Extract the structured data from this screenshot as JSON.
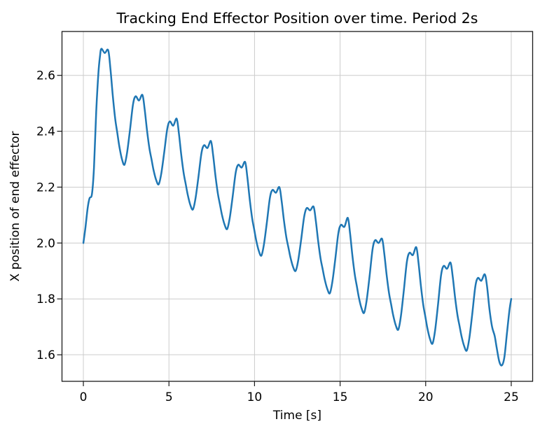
{
  "chart_data": {
    "type": "line",
    "title": "Tracking End Effector Position over time. Period 2s",
    "xlabel": "Time [s]",
    "ylabel": "X position of end effector",
    "grid": true,
    "legend": "none",
    "xlim": [
      -1.25,
      26.25
    ],
    "ylim": [
      1.505,
      2.757
    ],
    "xticks": [
      0,
      5,
      10,
      15,
      20,
      25
    ],
    "xtick_labels": [
      "0",
      "5",
      "10",
      "15",
      "20",
      "25"
    ],
    "yticks": [
      1.6,
      1.8,
      2.0,
      2.2,
      2.4,
      2.6
    ],
    "ytick_labels": [
      "1.6",
      "1.8",
      "2.0",
      "2.2",
      "2.4",
      "2.6"
    ],
    "line_color": "#1f77b4",
    "grid_color": "#cccccc",
    "spine_color": "#1a1a1a",
    "background_color": "#ffffff",
    "oscillation_period_s": 2,
    "series": [
      {
        "name": "X position of end effector",
        "x": [
          0,
          0.12,
          0.25,
          0.36,
          0.5,
          0.62,
          0.75,
          0.88,
          0.97,
          1.05,
          1.25,
          1.45,
          1.58,
          1.72,
          1.86,
          1.98,
          2.1,
          2.25,
          2.4,
          2.55,
          2.72,
          2.9,
          3.05,
          3.25,
          3.45,
          3.58,
          3.72,
          3.86,
          3.98,
          4.1,
          4.25,
          4.4,
          4.55,
          4.72,
          4.9,
          5.05,
          5.25,
          5.45,
          5.58,
          5.72,
          5.86,
          5.98,
          6.1,
          6.25,
          6.4,
          6.55,
          6.72,
          6.9,
          7.05,
          7.25,
          7.45,
          7.58,
          7.72,
          7.86,
          7.98,
          8.1,
          8.25,
          8.4,
          8.55,
          8.72,
          8.9,
          9.05,
          9.25,
          9.45,
          9.58,
          9.72,
          9.86,
          9.98,
          10.1,
          10.25,
          10.4,
          10.55,
          10.72,
          10.9,
          11.05,
          11.25,
          11.45,
          11.58,
          11.72,
          11.86,
          11.98,
          12.1,
          12.25,
          12.4,
          12.55,
          12.72,
          12.9,
          13.05,
          13.25,
          13.45,
          13.58,
          13.72,
          13.86,
          13.98,
          14.1,
          14.25,
          14.4,
          14.55,
          14.72,
          14.9,
          15.05,
          15.25,
          15.45,
          15.58,
          15.72,
          15.86,
          15.98,
          16.1,
          16.25,
          16.4,
          16.55,
          16.72,
          16.9,
          17.05,
          17.25,
          17.45,
          17.58,
          17.72,
          17.86,
          17.98,
          18.1,
          18.25,
          18.4,
          18.55,
          18.72,
          18.9,
          19.05,
          19.25,
          19.45,
          19.58,
          19.72,
          19.86,
          19.98,
          20.1,
          20.25,
          20.4,
          20.55,
          20.72,
          20.9,
          21.05,
          21.25,
          21.45,
          21.58,
          21.72,
          21.86,
          21.98,
          22.1,
          22.25,
          22.4,
          22.55,
          22.72,
          22.9,
          23.05,
          23.25,
          23.45,
          23.58,
          23.73,
          23.88,
          24.03,
          24.15,
          24.3,
          24.45,
          24.6,
          24.75,
          24.9,
          25
        ],
        "y": [
          2.0,
          2.055,
          2.125,
          2.16,
          2.175,
          2.27,
          2.47,
          2.61,
          2.668,
          2.695,
          2.68,
          2.69,
          2.624,
          2.526,
          2.444,
          2.395,
          2.346,
          2.301,
          2.28,
          2.322,
          2.403,
          2.496,
          2.525,
          2.51,
          2.53,
          2.479,
          2.402,
          2.338,
          2.3,
          2.261,
          2.226,
          2.21,
          2.248,
          2.323,
          2.408,
          2.435,
          2.42,
          2.445,
          2.393,
          2.315,
          2.25,
          2.211,
          2.172,
          2.136,
          2.12,
          2.159,
          2.235,
          2.322,
          2.35,
          2.34,
          2.365,
          2.315,
          2.239,
          2.176,
          2.138,
          2.1,
          2.066,
          2.05,
          2.089,
          2.165,
          2.252,
          2.28,
          2.27,
          2.29,
          2.236,
          2.156,
          2.089,
          2.049,
          2.009,
          1.972,
          1.955,
          1.995,
          2.073,
          2.162,
          2.19,
          2.18,
          2.2,
          2.152,
          2.08,
          2.02,
          1.984,
          1.948,
          1.915,
          1.9,
          1.937,
          2.01,
          2.094,
          2.125,
          2.117,
          2.13,
          2.08,
          2.006,
          1.944,
          1.907,
          1.87,
          1.836,
          1.82,
          1.862,
          1.943,
          2.036,
          2.065,
          2.058,
          2.09,
          2.036,
          1.954,
          1.886,
          1.845,
          1.804,
          1.767,
          1.75,
          1.794,
          1.88,
          1.979,
          2.01,
          2.0,
          2.015,
          1.963,
          1.885,
          1.82,
          1.781,
          1.742,
          1.706,
          1.69,
          1.737,
          1.828,
          1.932,
          1.965,
          1.957,
          1.985,
          1.93,
          1.847,
          1.778,
          1.737,
          1.695,
          1.657,
          1.64,
          1.687,
          1.779,
          1.885,
          1.918,
          1.908,
          1.93,
          1.88,
          1.804,
          1.741,
          1.703,
          1.665,
          1.631,
          1.615,
          1.659,
          1.745,
          1.844,
          1.875,
          1.865,
          1.888,
          1.848,
          1.762,
          1.7,
          1.668,
          1.625,
          1.576,
          1.562,
          1.592,
          1.678,
          1.762,
          1.8
        ]
      }
    ]
  }
}
